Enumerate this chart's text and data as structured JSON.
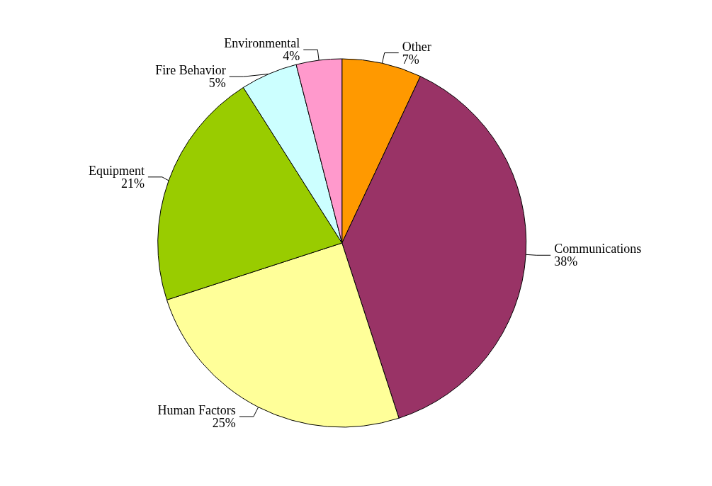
{
  "chart_data": {
    "type": "pie",
    "categories": [
      "Other",
      "Communications",
      "Human Factors",
      "Equipment",
      "Fire Behavior",
      "Environmental"
    ],
    "values": [
      7,
      38,
      25,
      21,
      5,
      4
    ],
    "colors": [
      "#ff9900",
      "#993366",
      "#ffff99",
      "#99cc00",
      "#ccffff",
      "#ff99cc"
    ],
    "value_labels": [
      "7%",
      "38%",
      "25%",
      "21%",
      "5%",
      "4%"
    ],
    "legend": false
  }
}
